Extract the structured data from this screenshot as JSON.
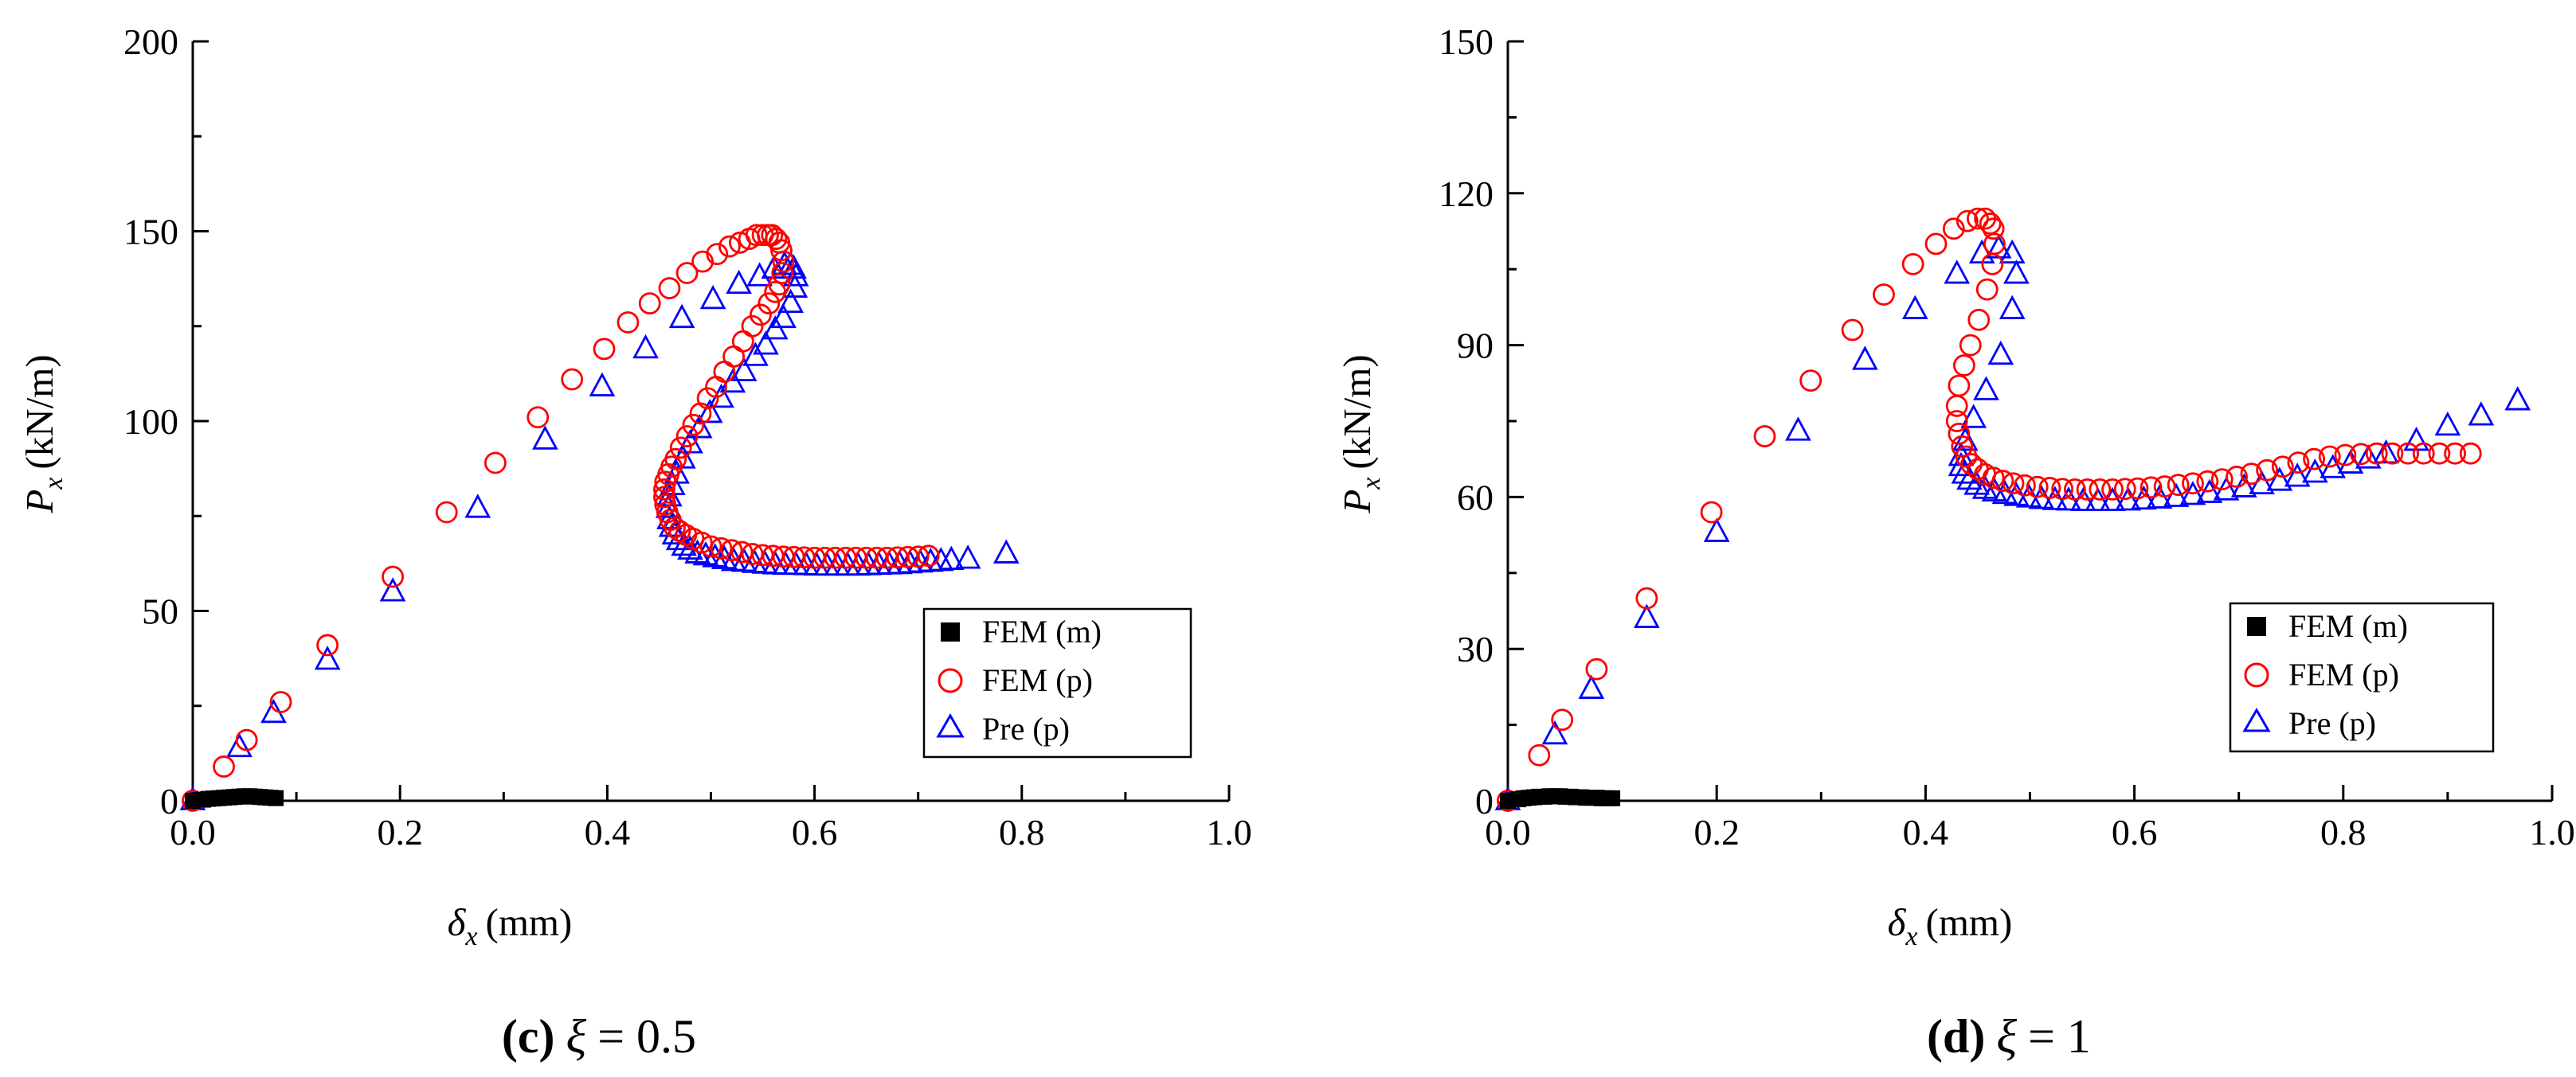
{
  "figure": {
    "panels": [
      {
        "caption_label": "(c)",
        "caption_symbol": "ξ",
        "caption_value": "= 0.5"
      },
      {
        "caption_label": "(d)",
        "caption_symbol": "ξ",
        "caption_value": "= 1"
      }
    ]
  },
  "chart_data": [
    {
      "type": "scatter",
      "title": "(c) ξ = 0.5",
      "xlabel_symbol": "δ",
      "xlabel_sub": "x",
      "xlabel_unit": "(mm)",
      "ylabel_symbol": "P",
      "ylabel_sub": "x",
      "ylabel_unit": "(kN/m)",
      "xlim": [
        0,
        1.0
      ],
      "ylim": [
        0,
        200
      ],
      "xticks": [
        0,
        0.2,
        0.4,
        0.6,
        0.8,
        1.0
      ],
      "xtick_labels": [
        "0.0",
        "0.2",
        "0.4",
        "0.6",
        "0.8",
        "1.0"
      ],
      "yticks": [
        0,
        50,
        100,
        150,
        200
      ],
      "ytick_labels": [
        "0",
        "50",
        "100",
        "150",
        "200"
      ],
      "legend_position": "bottom-right",
      "series": [
        {
          "name": "FEM (m)",
          "marker": "square",
          "color": "#000000",
          "x": [
            0.0,
            0.01,
            0.015,
            0.02,
            0.025,
            0.03,
            0.035,
            0.04,
            0.045,
            0.05,
            0.055,
            0.06,
            0.065,
            0.07,
            0.075,
            0.08
          ],
          "y": [
            0,
            0.3,
            0.5,
            0.6,
            0.7,
            0.8,
            0.9,
            1.0,
            1.1,
            1.2,
            1.2,
            1.1,
            1.0,
            0.9,
            0.8,
            0.7
          ]
        },
        {
          "name": "FEM (p)",
          "marker": "circle",
          "color": "#ff0000",
          "x": [
            0.0,
            0.03,
            0.052,
            0.085,
            0.13,
            0.193,
            0.245,
            0.292,
            0.333,
            0.366,
            0.397,
            0.42,
            0.441,
            0.46,
            0.477,
            0.492,
            0.506,
            0.518,
            0.528,
            0.537,
            0.544,
            0.55,
            0.555,
            0.559,
            0.563,
            0.566,
            0.568,
            0.57,
            0.569,
            0.566,
            0.562,
            0.556,
            0.548,
            0.54,
            0.531,
            0.522,
            0.513,
            0.505,
            0.497,
            0.49,
            0.483,
            0.477,
            0.471,
            0.466,
            0.462,
            0.459,
            0.456,
            0.455,
            0.455,
            0.456,
            0.458,
            0.461,
            0.465,
            0.47,
            0.476,
            0.483,
            0.491,
            0.5,
            0.51,
            0.52,
            0.53,
            0.54,
            0.55,
            0.56,
            0.57,
            0.58,
            0.59,
            0.6,
            0.61,
            0.62,
            0.63,
            0.64,
            0.65,
            0.66,
            0.67,
            0.68,
            0.69,
            0.7,
            0.71
          ],
          "y": [
            0,
            9,
            16,
            26,
            41,
            59,
            76,
            89,
            101,
            111,
            119,
            126,
            131,
            135,
            139,
            142,
            144,
            146,
            147,
            148,
            149,
            149,
            149,
            149,
            148,
            147,
            145,
            142,
            139,
            136,
            134,
            131,
            128,
            125,
            121,
            117,
            113,
            109,
            106,
            102,
            99,
            96,
            93,
            90,
            88,
            86,
            84,
            82,
            80,
            78,
            76,
            74,
            72,
            71,
            70,
            69,
            68,
            67,
            66.5,
            66,
            65.5,
            65,
            64.7,
            64.5,
            64.3,
            64.2,
            64.1,
            64,
            64,
            64,
            64,
            64,
            64,
            64,
            64,
            64.1,
            64.2,
            64.3,
            64.5
          ]
        },
        {
          "name": "Pre (p)",
          "marker": "triangle",
          "color": "#0000ff",
          "x": [
            0.0,
            0.045,
            0.078,
            0.13,
            0.193,
            0.275,
            0.34,
            0.395,
            0.437,
            0.472,
            0.502,
            0.527,
            0.547,
            0.561,
            0.571,
            0.577,
            0.58,
            0.582,
            0.581,
            0.577,
            0.57,
            0.562,
            0.553,
            0.543,
            0.532,
            0.521,
            0.51,
            0.499,
            0.489,
            0.48,
            0.473,
            0.467,
            0.463,
            0.46,
            0.459,
            0.46,
            0.462,
            0.465,
            0.469,
            0.474,
            0.48,
            0.487,
            0.495,
            0.504,
            0.513,
            0.522,
            0.532,
            0.542,
            0.552,
            0.562,
            0.572,
            0.582,
            0.592,
            0.602,
            0.612,
            0.622,
            0.632,
            0.642,
            0.652,
            0.662,
            0.672,
            0.682,
            0.692,
            0.702,
            0.712,
            0.722,
            0.732,
            0.748,
            0.785
          ],
          "y": [
            0,
            14,
            23,
            37,
            55,
            77,
            95,
            109,
            119,
            127,
            132,
            136,
            138,
            140,
            141,
            141,
            140,
            138,
            135,
            131,
            127,
            124,
            120,
            117,
            113,
            110,
            106,
            102,
            98,
            94,
            90,
            86,
            83,
            80,
            77,
            74,
            72,
            70,
            68.5,
            67,
            66,
            65,
            64.5,
            64,
            63.5,
            63,
            62.8,
            62.5,
            62.3,
            62.1,
            62,
            62,
            61.9,
            61.8,
            61.8,
            61.8,
            61.8,
            61.8,
            61.9,
            62,
            62.1,
            62.2,
            62.4,
            62.6,
            62.8,
            63,
            63.3,
            63.6,
            65
          ]
        }
      ]
    },
    {
      "type": "scatter",
      "title": "(d) ξ = 1",
      "xlabel_symbol": "δ",
      "xlabel_sub": "x",
      "xlabel_unit": "(mm)",
      "ylabel_symbol": "P",
      "ylabel_sub": "x",
      "ylabel_unit": "(kN/m)",
      "xlim": [
        0,
        1.0
      ],
      "ylim": [
        0,
        150
      ],
      "xticks": [
        0,
        0.2,
        0.4,
        0.6,
        0.8,
        1.0
      ],
      "xtick_labels": [
        "0.0",
        "0.2",
        "0.4",
        "0.6",
        "0.8",
        "1.0"
      ],
      "yticks": [
        0,
        30,
        60,
        90,
        120,
        150
      ],
      "ytick_labels": [
        "0",
        "30",
        "60",
        "90",
        "120",
        "150"
      ],
      "legend_position": "bottom-right",
      "series": [
        {
          "name": "FEM (m)",
          "marker": "square",
          "color": "#000000",
          "x": [
            0.0,
            0.01,
            0.015,
            0.02,
            0.025,
            0.03,
            0.035,
            0.04,
            0.045,
            0.05,
            0.055,
            0.06,
            0.065,
            0.07,
            0.075,
            0.08,
            0.085,
            0.09,
            0.095,
            0.1
          ],
          "y": [
            0,
            0.3,
            0.5,
            0.6,
            0.7,
            0.8,
            0.8,
            0.9,
            0.9,
            0.9,
            0.8,
            0.8,
            0.7,
            0.7,
            0.6,
            0.6,
            0.6,
            0.5,
            0.5,
            0.5
          ]
        },
        {
          "name": "FEM (p)",
          "marker": "circle",
          "color": "#ff0000",
          "x": [
            0.0,
            0.03,
            0.052,
            0.085,
            0.133,
            0.195,
            0.246,
            0.29,
            0.33,
            0.36,
            0.388,
            0.41,
            0.427,
            0.44,
            0.45,
            0.457,
            0.462,
            0.465,
            0.466,
            0.464,
            0.459,
            0.451,
            0.443,
            0.437,
            0.432,
            0.43,
            0.43,
            0.432,
            0.435,
            0.439,
            0.444,
            0.45,
            0.457,
            0.465,
            0.474,
            0.484,
            0.495,
            0.507,
            0.519,
            0.531,
            0.543,
            0.555,
            0.567,
            0.579,
            0.591,
            0.603,
            0.616,
            0.629,
            0.642,
            0.656,
            0.67,
            0.684,
            0.698,
            0.712,
            0.727,
            0.742,
            0.757,
            0.772,
            0.787,
            0.802,
            0.817,
            0.832,
            0.847,
            0.862,
            0.877,
            0.892,
            0.907,
            0.922
          ],
          "y": [
            0,
            9,
            16,
            26,
            40,
            57,
            72,
            83,
            93,
            100,
            106,
            110,
            113,
            114.5,
            115,
            115,
            114,
            113,
            110,
            106,
            101,
            95,
            90,
            86,
            82,
            78,
            75,
            72.5,
            70,
            68,
            66.5,
            65.5,
            64.5,
            63.8,
            63.2,
            62.7,
            62.3,
            62,
            61.8,
            61.6,
            61.5,
            61.5,
            61.5,
            61.5,
            61.6,
            61.7,
            61.9,
            62.1,
            62.4,
            62.7,
            63.1,
            63.5,
            64,
            64.6,
            65.3,
            66,
            66.8,
            67.5,
            68,
            68.3,
            68.5,
            68.6,
            68.6,
            68.6,
            68.6,
            68.6,
            68.6,
            68.6
          ]
        },
        {
          "name": "Pre (p)",
          "marker": "triangle",
          "color": "#0000ff",
          "x": [
            0.0,
            0.045,
            0.08,
            0.133,
            0.2,
            0.278,
            0.342,
            0.39,
            0.43,
            0.454,
            0.47,
            0.483,
            0.487,
            0.483,
            0.472,
            0.458,
            0.446,
            0.438,
            0.434,
            0.434,
            0.437,
            0.442,
            0.449,
            0.457,
            0.466,
            0.476,
            0.487,
            0.499,
            0.511,
            0.524,
            0.537,
            0.551,
            0.565,
            0.579,
            0.594,
            0.609,
            0.624,
            0.64,
            0.656,
            0.672,
            0.688,
            0.705,
            0.722,
            0.739,
            0.756,
            0.773,
            0.79,
            0.807,
            0.824,
            0.841,
            0.87,
            0.9,
            0.932,
            0.967
          ],
          "y": [
            0,
            13,
            22,
            36,
            53,
            73,
            87,
            97,
            104,
            108,
            109,
            108,
            104,
            97,
            88,
            81,
            75.5,
            71,
            68,
            66,
            64.5,
            63.3,
            62.3,
            61.5,
            61,
            60.5,
            60.1,
            59.8,
            59.5,
            59.3,
            59.2,
            59.1,
            59.1,
            59.1,
            59.2,
            59.4,
            59.6,
            59.9,
            60.3,
            60.7,
            61.2,
            61.8,
            62.4,
            63.1,
            63.9,
            64.7,
            65.6,
            66.5,
            67.5,
            68.5,
            71,
            74,
            76,
            79
          ]
        }
      ]
    }
  ]
}
